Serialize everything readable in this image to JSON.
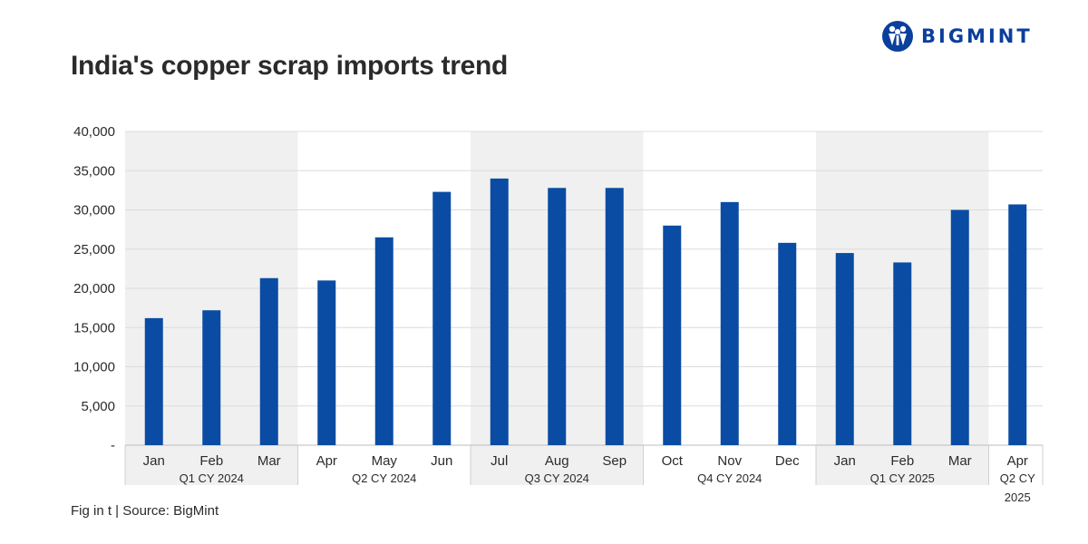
{
  "header": {
    "title": "India's copper scrap imports trend",
    "logo_text": "BIGMINT"
  },
  "footnote": "Fig in t | Source: BigMint",
  "colors": {
    "bar": "#0a4ca3",
    "band": "#f0f0f0",
    "grid": "#dcdcdc",
    "brand": "#0b3f9c"
  },
  "chart_data": {
    "type": "bar",
    "title": "India's copper scrap imports trend",
    "ylabel": "",
    "xlabel": "",
    "ylim": [
      0,
      40000
    ],
    "y_ticks": [
      "-",
      "5,000",
      "10,000",
      "15,000",
      "20,000",
      "25,000",
      "30,000",
      "35,000",
      "40,000"
    ],
    "categories": [
      "Jan",
      "Feb",
      "Mar",
      "Apr",
      "May",
      "Jun",
      "Jul",
      "Aug",
      "Sep",
      "Oct",
      "Nov",
      "Dec",
      "Jan",
      "Feb",
      "Mar",
      "Apr"
    ],
    "values": [
      16200,
      17200,
      21300,
      21000,
      26500,
      32300,
      34000,
      32800,
      32800,
      28000,
      31000,
      25800,
      24500,
      23300,
      30000,
      30700
    ],
    "groups": [
      {
        "label": "Q1 CY 2024",
        "count": 3,
        "shaded": true
      },
      {
        "label": "Q2 CY 2024",
        "count": 3,
        "shaded": false
      },
      {
        "label": "Q3 CY 2024",
        "count": 3,
        "shaded": true
      },
      {
        "label": "Q4 CY 2024",
        "count": 3,
        "shaded": false
      },
      {
        "label": "Q1 CY 2025",
        "count": 3,
        "shaded": true
      },
      {
        "label": "Q2 CY 2025",
        "count": 1,
        "shaded": false
      }
    ],
    "grid": true,
    "legend": "none"
  }
}
